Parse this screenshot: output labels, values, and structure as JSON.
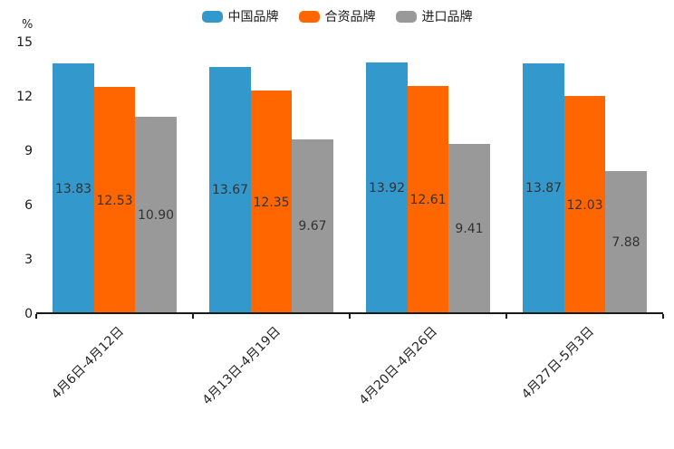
{
  "chart_data": {
    "type": "bar",
    "title": "",
    "ylabel": "%",
    "xlabel": "",
    "ylim": [
      0,
      15
    ],
    "yticks": [
      0,
      3,
      6,
      9,
      12,
      15
    ],
    "grid": false,
    "legend_position": "top-center",
    "value_label_decimals": 2,
    "categories": [
      "4月6日-4月12日",
      "4月13日-4月19日",
      "4月20日-4月26日",
      "4月27日-5月3日"
    ],
    "series": [
      {
        "name": "中国品牌",
        "color": "#3398CB",
        "values": [
          13.83,
          13.67,
          13.92,
          13.87
        ]
      },
      {
        "name": "合资品牌",
        "color": "#FF6600",
        "values": [
          12.53,
          12.35,
          12.61,
          12.03
        ]
      },
      {
        "name": "进口品牌",
        "color": "#999999",
        "values": [
          10.9,
          9.67,
          9.41,
          7.88
        ]
      }
    ],
    "colors": {
      "axis": "#1a1a1a",
      "tick_label": "#1a1a1a",
      "value_label": "#333333",
      "background": "#ffffff"
    }
  }
}
